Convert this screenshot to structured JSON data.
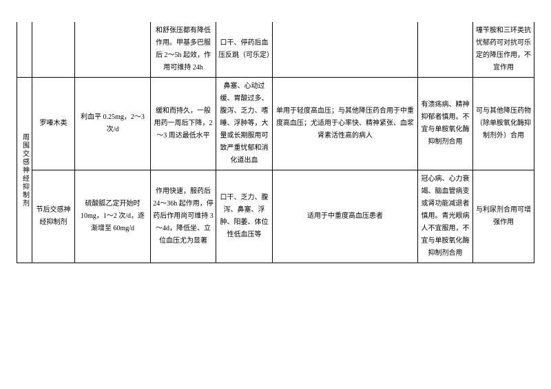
{
  "rows": {
    "r0": {
      "mech": "和舒张压都有降低作用。甲基多巴服后 2～5h 起效，作用可维持 24h",
      "ae": "口干、停药后血压反跳（可乐定）",
      "pre": "",
      "int": "噻苄胺和三环类抗忧郁药可对抗可乐定的降压作用，不宜作用"
    },
    "r1": {
      "category": "周围交感神经抑制剂",
      "subclass": "罗嗪木类",
      "drug": "利血平 0.25mg，2～3 次/d",
      "mech": "缓和而持久，一般用药一周后下降，2～3 周达最低水平",
      "ae": "鼻塞、心动过缓、胃酸过多、腹泻、乏力、嗜睡、浮肿等，大量或长期服用可致严重忧郁和消化道出血",
      "ind": "单用于轻度高血压；与其他降压药合用于中重度高血压；尤适用于心率快、精神紧张、血浆肾素活性高的病人",
      "pre": "有溃疡病、精神抑郁者慎用。不宜与单胺氧化酶抑制剂合用",
      "int": "可与其他降压药物（除单胺氧化酶抑制剂外）合用"
    },
    "r2": {
      "subclass": "节后交感神经抑制剂",
      "drug": "硫酸胍乙定开始时 10mg，1～2 次/d，逐渐增至 60mg/d",
      "mech": "作用快速，服药后 24～36h 起作用，停药后作用尚可维持 3～4d，降低坐、立位血压尤为显著",
      "ae": "口干、乏力、腹泻、鼻塞、浮肿、阳萎、体位性低血压等",
      "ind": "适用于中重度高血压患者",
      "pre": "冠心病、心力衰竭、脑血管病变或肾功能减退者慎用。青光眼病人不宜服用，不宜与单胺氧化酶抑制剂合用",
      "int": "与利尿剂合用可增强作用"
    }
  }
}
